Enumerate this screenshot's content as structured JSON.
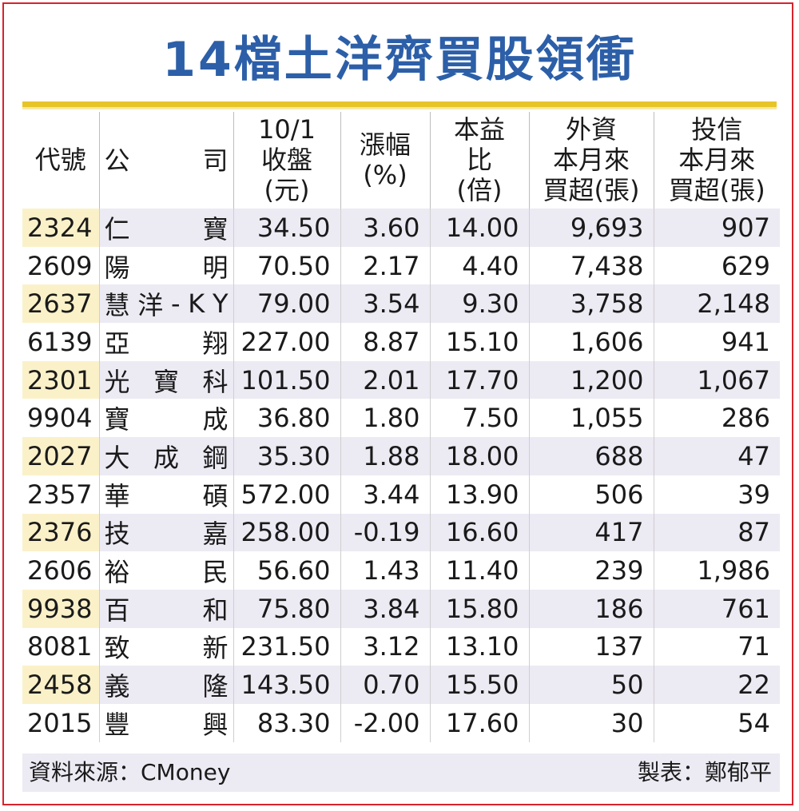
{
  "title": "14檔土洋齊買股領衝",
  "headers": {
    "code": "代號",
    "company": [
      "公",
      "司"
    ],
    "close": [
      "10/1",
      "收盤",
      "(元)"
    ],
    "change": [
      "漲幅",
      "(%)"
    ],
    "pe": [
      "本益",
      "比",
      "(倍)"
    ],
    "foreign": [
      "外資",
      "本月來",
      "買超(張)"
    ],
    "trust": [
      "投信",
      "本月來",
      "買超(張)"
    ]
  },
  "rows": [
    {
      "code": "2324",
      "name": [
        "仁",
        "寶"
      ],
      "close": "34.50",
      "change": "3.60",
      "pe": "14.00",
      "foreign": "9,693",
      "trust": "907"
    },
    {
      "code": "2609",
      "name": [
        "陽",
        "明"
      ],
      "close": "70.50",
      "change": "2.17",
      "pe": "4.40",
      "foreign": "7,438",
      "trust": "629"
    },
    {
      "code": "2637",
      "name": [
        "慧",
        "洋",
        "-",
        "K",
        "Y"
      ],
      "close": "79.00",
      "change": "3.54",
      "pe": "9.30",
      "foreign": "3,758",
      "trust": "2,148"
    },
    {
      "code": "6139",
      "name": [
        "亞",
        "翔"
      ],
      "close": "227.00",
      "change": "8.87",
      "pe": "15.10",
      "foreign": "1,606",
      "trust": "941"
    },
    {
      "code": "2301",
      "name": [
        "光",
        "寶",
        "科"
      ],
      "close": "101.50",
      "change": "2.01",
      "pe": "17.70",
      "foreign": "1,200",
      "trust": "1,067"
    },
    {
      "code": "9904",
      "name": [
        "寶",
        "成"
      ],
      "close": "36.80",
      "change": "1.80",
      "pe": "7.50",
      "foreign": "1,055",
      "trust": "286"
    },
    {
      "code": "2027",
      "name": [
        "大",
        "成",
        "鋼"
      ],
      "close": "35.30",
      "change": "1.88",
      "pe": "18.00",
      "foreign": "688",
      "trust": "47"
    },
    {
      "code": "2357",
      "name": [
        "華",
        "碩"
      ],
      "close": "572.00",
      "change": "3.44",
      "pe": "13.90",
      "foreign": "506",
      "trust": "39"
    },
    {
      "code": "2376",
      "name": [
        "技",
        "嘉"
      ],
      "close": "258.00",
      "change": "-0.19",
      "pe": "16.60",
      "foreign": "417",
      "trust": "87"
    },
    {
      "code": "2606",
      "name": [
        "裕",
        "民"
      ],
      "close": "56.60",
      "change": "1.43",
      "pe": "11.40",
      "foreign": "239",
      "trust": "1,986"
    },
    {
      "code": "9938",
      "name": [
        "百",
        "和"
      ],
      "close": "75.80",
      "change": "3.84",
      "pe": "15.80",
      "foreign": "186",
      "trust": "761"
    },
    {
      "code": "8081",
      "name": [
        "致",
        "新"
      ],
      "close": "231.50",
      "change": "3.12",
      "pe": "13.10",
      "foreign": "137",
      "trust": "71"
    },
    {
      "code": "2458",
      "name": [
        "義",
        "隆"
      ],
      "close": "143.50",
      "change": "0.70",
      "pe": "15.50",
      "foreign": "50",
      "trust": "22"
    },
    {
      "code": "2015",
      "name": [
        "豐",
        "興"
      ],
      "close": "83.30",
      "change": "-2.00",
      "pe": "17.60",
      "foreign": "30",
      "trust": "54"
    }
  ],
  "footer": {
    "source": "資料來源：CMoney",
    "maker": "製表：鄭郁平"
  },
  "colors": {
    "title": "#2c5fa8",
    "border": "#d9232d",
    "rule": "#e7c429",
    "row_shade": "#eceaf3",
    "code_highlight": "#fbf1c9"
  }
}
